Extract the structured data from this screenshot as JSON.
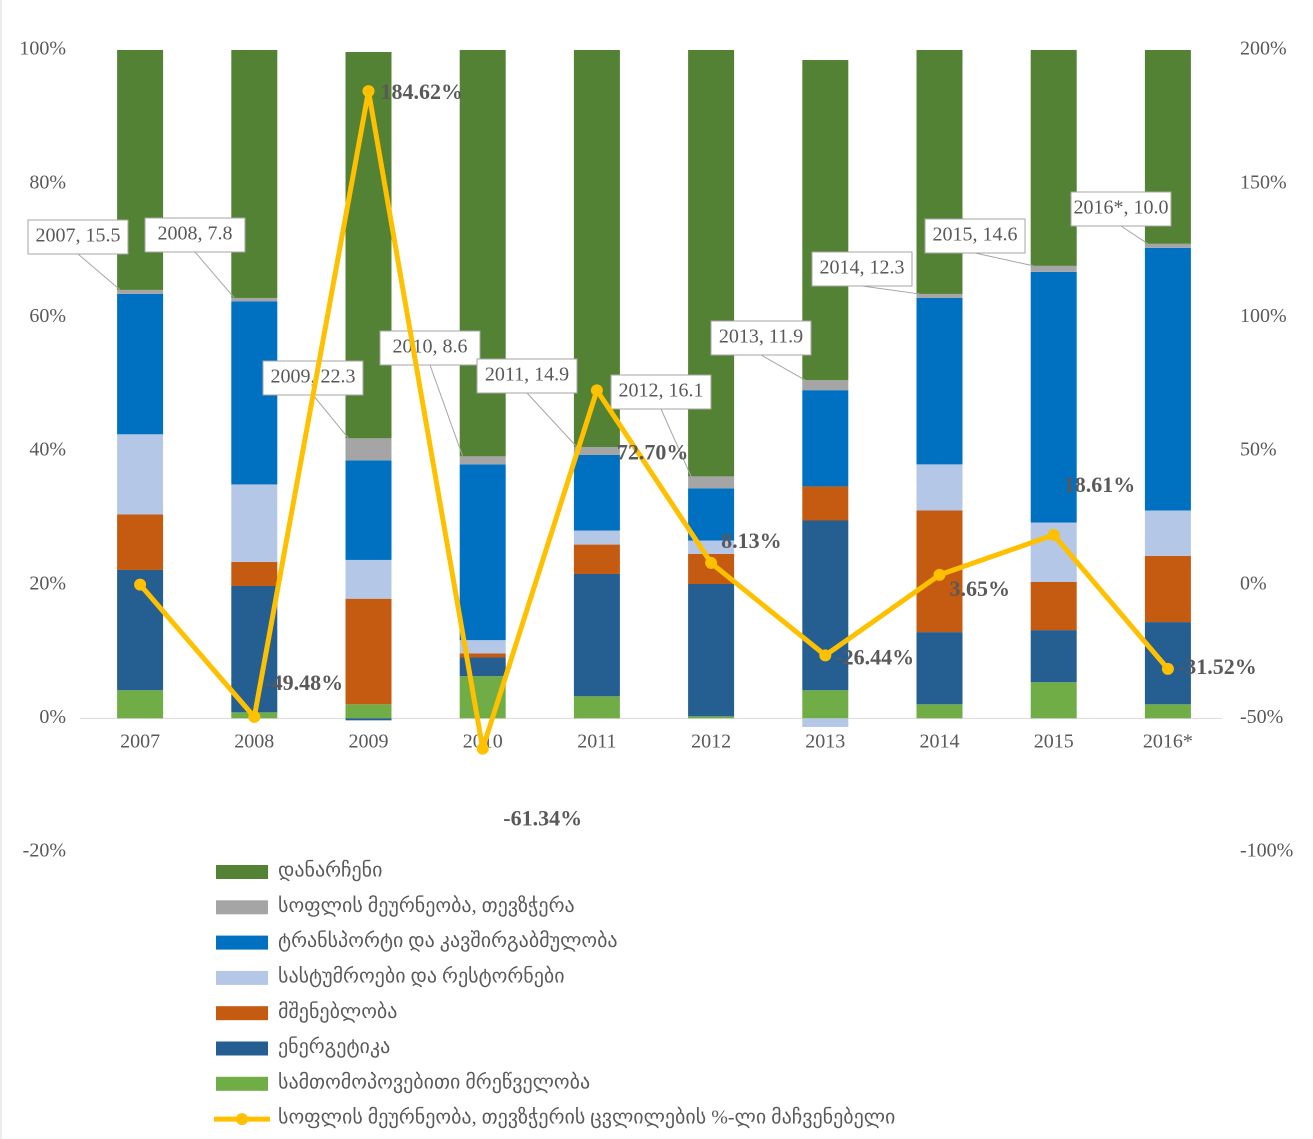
{
  "chart_data": {
    "type": "bar",
    "stacked": true,
    "categories": [
      "2007",
      "2008",
      "2009",
      "2010",
      "2011",
      "2012",
      "2013",
      "2014",
      "2015",
      "2016*"
    ],
    "series": [
      {
        "name": "სამთომოპოვებითი მრეწველობა",
        "color": "#70ad47",
        "values": [
          4.2,
          0.9,
          2.1,
          6.3,
          3.3,
          0.3,
          4.2,
          2.1,
          5.4,
          2.1
        ]
      },
      {
        "name": "ენერგეტიკა",
        "color": "#255e91",
        "values": [
          18.0,
          18.9,
          -0.3,
          2.8,
          18.3,
          19.8,
          25.4,
          10.8,
          7.8,
          12.3
        ]
      },
      {
        "name": "მშენებლობა",
        "color": "#c55a11",
        "values": [
          8.3,
          3.6,
          15.8,
          0.6,
          4.4,
          4.5,
          5.1,
          18.2,
          7.2,
          9.9
        ]
      },
      {
        "name": "სასტუმროები და რესტორნები",
        "color": "#b4c7e7",
        "values": [
          12.0,
          11.6,
          5.8,
          2.0,
          2.1,
          2.0,
          -1.3,
          6.9,
          8.9,
          6.8
        ]
      },
      {
        "name": "ტრანსპორტი და კავშირგაბმულობა",
        "color": "#0070c0",
        "values": [
          21.0,
          27.4,
          14.9,
          26.3,
          11.3,
          7.8,
          14.4,
          24.9,
          37.5,
          39.3
        ]
      },
      {
        "name": "სოფლის მეურნეობა, თევზჭერა",
        "color": "#a5a5a5",
        "values": [
          0.6,
          0.5,
          3.3,
          1.2,
          1.2,
          1.8,
          1.5,
          0.6,
          0.9,
          0.6
        ]
      },
      {
        "name": "დანარჩენი",
        "color": "#548235",
        "values": [
          35.9,
          37.1,
          57.8,
          60.8,
          59.4,
          63.8,
          47.9,
          36.5,
          32.3,
          29.0
        ]
      },
      {
        "name": "სოფლის მეურნეობა, თევზჭერის ცვლილების %-ლი მაჩვენებელი",
        "color": "#ffc000",
        "type": "line",
        "axis": "y2",
        "values": [
          0,
          -49.48,
          184.62,
          -61.34,
          72.7,
          8.13,
          -26.44,
          3.65,
          18.61,
          -31.52
        ],
        "value_labels": [
          null,
          "-49.48%",
          "184.62%",
          "-61.34%",
          "72.70%",
          "8.13%",
          "-26.44%",
          "3.65%",
          "18.61%",
          "-31.52%"
        ]
      }
    ],
    "annotations": [
      {
        "text": "2007, 15.5"
      },
      {
        "text": "2008, 7.8"
      },
      {
        "text": "2009, 22.3"
      },
      {
        "text": "2010, 8.6"
      },
      {
        "text": "2011, 14.9"
      },
      {
        "text": "2012, 16.1"
      },
      {
        "text": "2013, 11.9"
      },
      {
        "text": "2014, 12.3"
      },
      {
        "text": "2015, 14.6"
      },
      {
        "text": "2016*, 10.0"
      }
    ],
    "ylim": [
      -20,
      100
    ],
    "yticks": [
      {
        "value": -20,
        "label": "-20%"
      },
      {
        "value": 0,
        "label": "0%"
      },
      {
        "value": 20,
        "label": "20%"
      },
      {
        "value": 40,
        "label": "40%"
      },
      {
        "value": 60,
        "label": "60%"
      },
      {
        "value": 80,
        "label": "80%"
      },
      {
        "value": 100,
        "label": "100%"
      }
    ],
    "y2lim": [
      -100,
      200
    ],
    "y2ticks": [
      {
        "value": -100,
        "label": "-100%"
      },
      {
        "value": -50,
        "label": "-50%"
      },
      {
        "value": 0,
        "label": "0%"
      },
      {
        "value": 50,
        "label": "50%"
      },
      {
        "value": 100,
        "label": "100%"
      },
      {
        "value": 150,
        "label": "150%"
      },
      {
        "value": 200,
        "label": "200%"
      }
    ],
    "legend": "bottom"
  }
}
